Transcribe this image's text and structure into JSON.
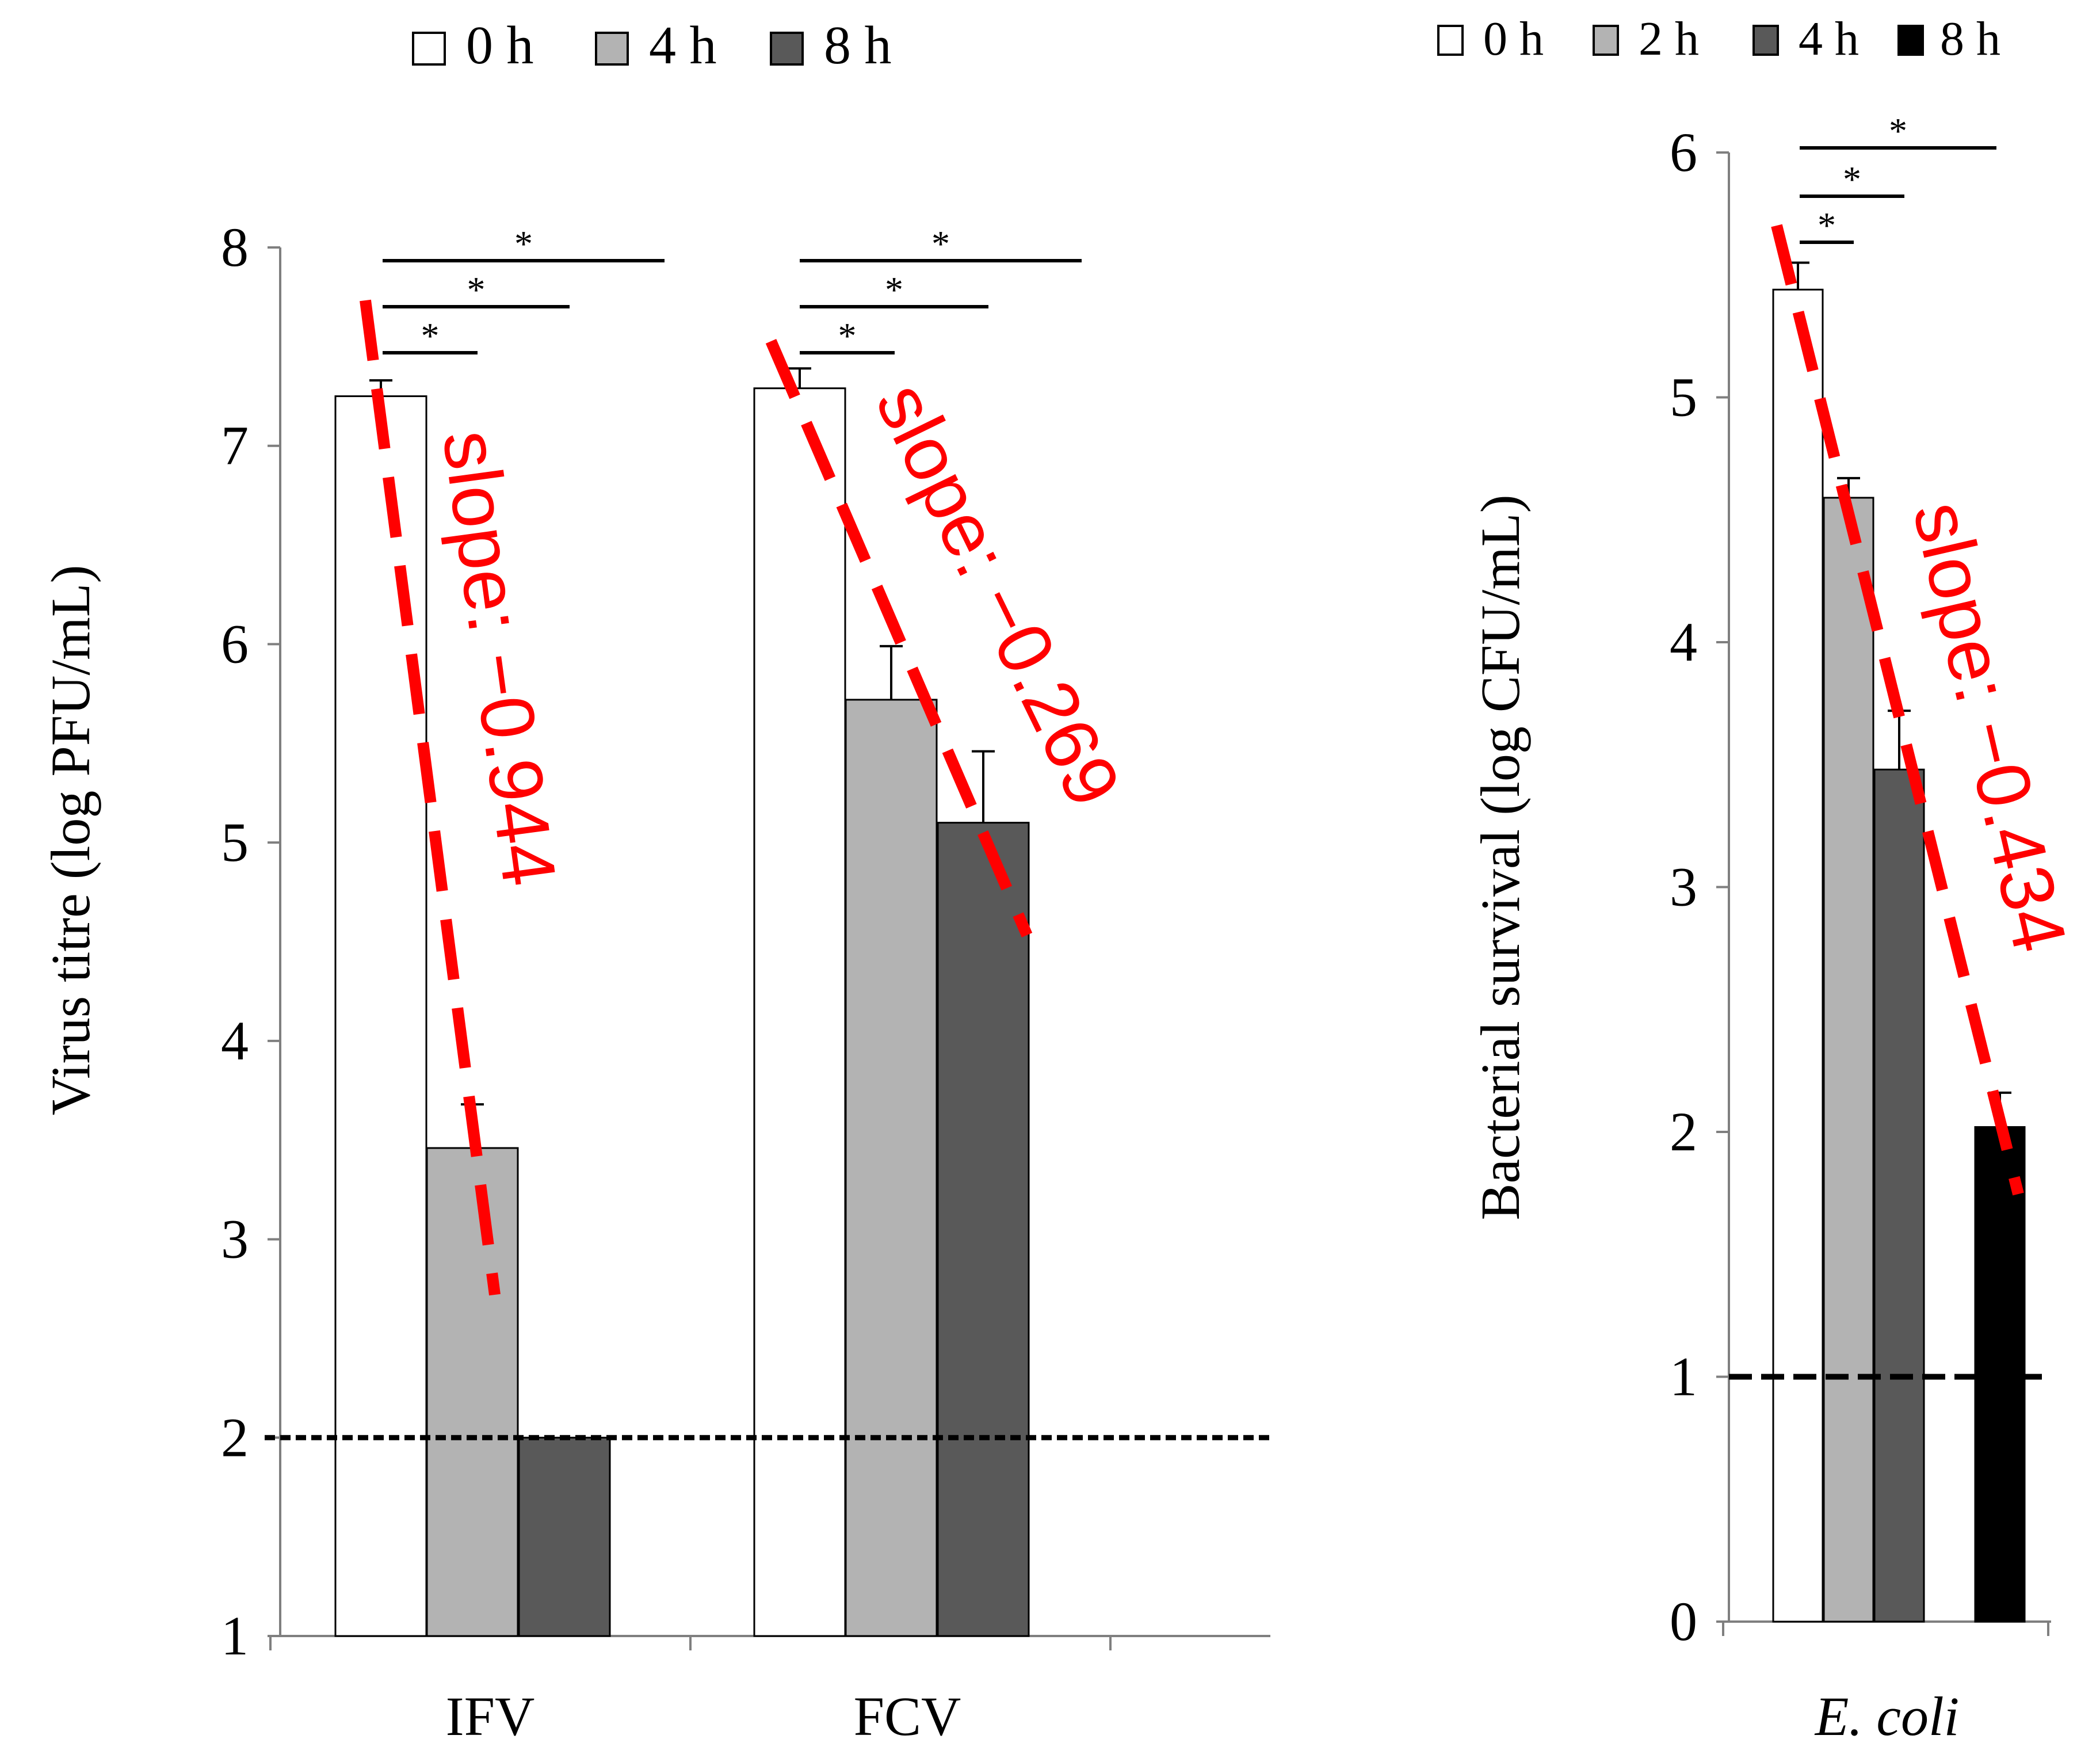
{
  "chart_data": [
    {
      "type": "bar",
      "ylabel": "Virus titre (log PFU/mL)",
      "ylim": [
        1,
        8
      ],
      "yticks": [
        "1",
        "2",
        "3",
        "4",
        "5",
        "6",
        "7",
        "8"
      ],
      "categories": [
        "IFV",
        "FCV"
      ],
      "legend": {
        "entries": [
          "0 h",
          "4 h",
          "8 h"
        ],
        "position": "top"
      },
      "series": [
        {
          "name": "0 h",
          "color": "#ffffff",
          "values": [
            7.25,
            7.29
          ],
          "errors": [
            0.08,
            0.1
          ]
        },
        {
          "name": "4 h",
          "color": "#b3b3b3",
          "values": [
            3.46,
            5.72
          ],
          "errors": [
            0.22,
            0.27
          ]
        },
        {
          "name": "8 h",
          "color": "#595959",
          "values": [
            2.0,
            5.1
          ],
          "errors": [
            0.0,
            0.36
          ]
        }
      ],
      "detection_limit": 2.0,
      "significance": [
        {
          "category": "IFV",
          "label": "*",
          "from": "0 h",
          "to": "4 h"
        },
        {
          "category": "IFV",
          "label": "*",
          "from": "0 h",
          "to": "8 h"
        },
        {
          "category": "IFV",
          "label": "*",
          "from": "0 h",
          "to": "8 h (wide)"
        },
        {
          "category": "FCV",
          "label": "*",
          "from": "0 h",
          "to": "4 h"
        },
        {
          "category": "FCV",
          "label": "*",
          "from": "0 h",
          "to": "8 h"
        },
        {
          "category": "FCV",
          "label": "*",
          "from": "0 h",
          "to": "8 h (wide)"
        }
      ],
      "slope_annotations": [
        {
          "category": "IFV",
          "text": "slope: −0.944",
          "color": "#ff0000"
        },
        {
          "category": "FCV",
          "text": "slope: −0.269",
          "color": "#ff0000"
        }
      ]
    },
    {
      "type": "bar",
      "ylabel": "Bacterial survival (log CFU/mL)",
      "ylim": [
        0,
        6
      ],
      "yticks": [
        "0",
        "1",
        "2",
        "3",
        "4",
        "5",
        "6"
      ],
      "categories": [
        "E. coli"
      ],
      "legend": {
        "entries": [
          "0 h",
          "2 h",
          "4 h",
          "8 h"
        ],
        "position": "top"
      },
      "series": [
        {
          "name": "0 h",
          "color": "#ffffff",
          "values": [
            5.44
          ],
          "errors": [
            0.11
          ]
        },
        {
          "name": "2 h",
          "color": "#b3b3b3",
          "values": [
            4.59
          ],
          "errors": [
            0.08
          ]
        },
        {
          "name": "4 h",
          "color": "#595959",
          "values": [
            3.48
          ],
          "errors": [
            0.24
          ]
        },
        {
          "name": "8 h",
          "color": "#000000",
          "values": [
            2.02
          ],
          "errors": [
            0.14
          ]
        }
      ],
      "detection_limit": 1.0,
      "significance": [
        {
          "label": "*",
          "from": "0 h",
          "to": "2 h"
        },
        {
          "label": "*",
          "from": "0 h",
          "to": "4 h"
        },
        {
          "label": "*",
          "from": "0 h",
          "to": "8 h"
        }
      ],
      "slope_annotations": [
        {
          "category": "E. coli",
          "text": "slope: −0.434",
          "color": "#ff0000"
        }
      ]
    }
  ]
}
